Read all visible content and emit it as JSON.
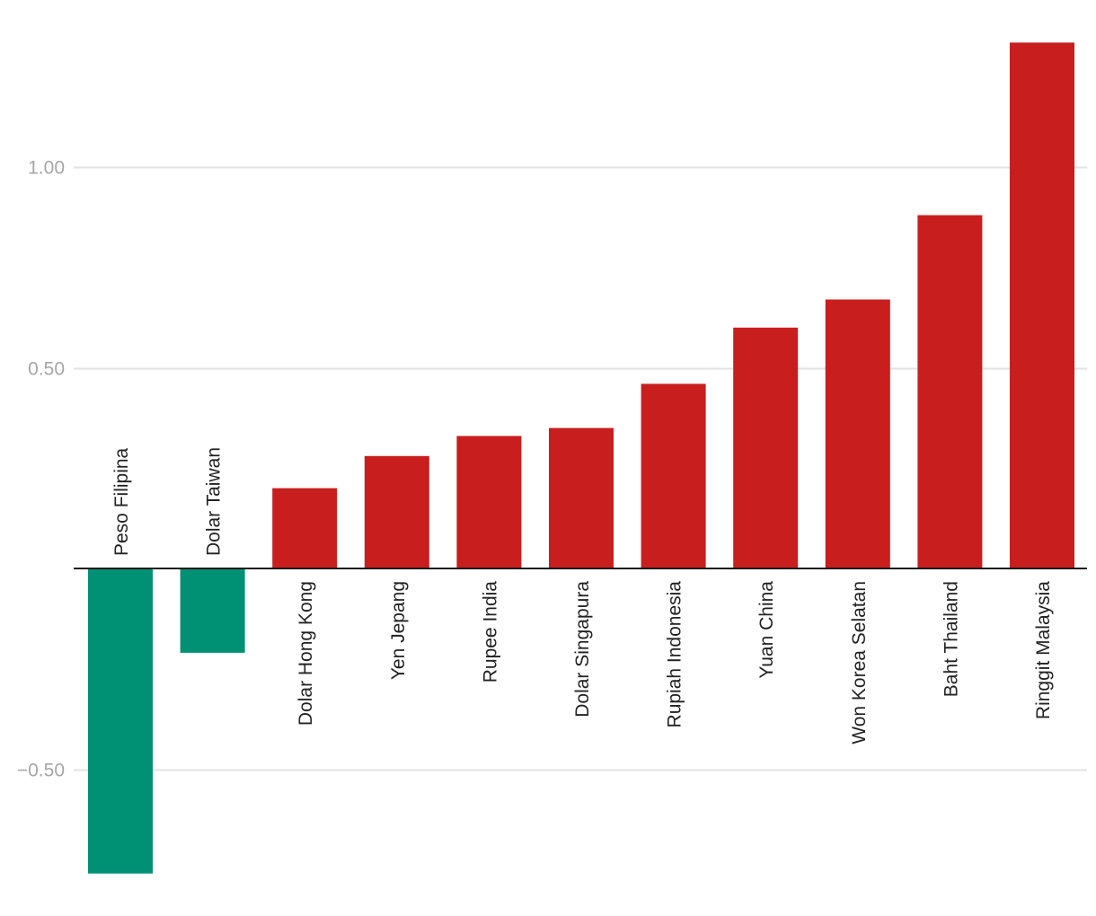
{
  "chart_data": {
    "type": "bar",
    "title": "",
    "xlabel": "",
    "ylabel": "",
    "ylim": [
      -0.76,
      1.33
    ],
    "yticks": [
      -0.5,
      0.5,
      1.0
    ],
    "ytick_labels": [
      "−0.50",
      "0.50",
      "1.00"
    ],
    "grid": true,
    "legend": "none",
    "categories": [
      "Peso Filipina",
      "Dolar Taiwan",
      "Dolar Hong Kong",
      "Yen Jepang",
      "Rupee India",
      "Dolar Singapura",
      "Rupiah Indonesia",
      "Yuan China",
      "Won Korea Selatan",
      "Baht Thailand",
      "Ringgit Malaysia"
    ],
    "values": [
      -0.76,
      -0.21,
      0.2,
      0.28,
      0.33,
      0.35,
      0.46,
      0.6,
      0.67,
      0.88,
      1.31
    ],
    "colors": {
      "positive": "#c81e1e",
      "negative": "#009174",
      "grid": "#e2e2e2",
      "axis": "#1a1a1a",
      "tick_text": "#a6a6a6",
      "label_text": "#222222"
    }
  }
}
